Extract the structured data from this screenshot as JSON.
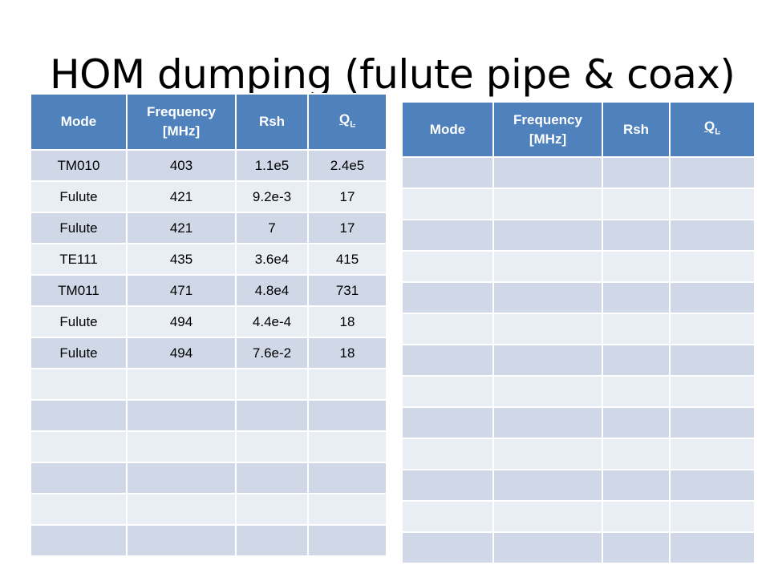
{
  "title": "HOM dumping (fulute pipe & coax)",
  "colors": {
    "header": "#4f81bd",
    "row_odd": "#d0d8e8",
    "row_even": "#e9edf4"
  },
  "table_left": {
    "headers": {
      "mode": "Mode",
      "frequency": "Frequency [MHz]",
      "rsh": "Rsh",
      "ql_main": "Q",
      "ql_sub": "L"
    },
    "rows": [
      [
        "TM010",
        "403",
        "1.1e5",
        "2.4e5"
      ],
      [
        "Fulute",
        "421",
        "9.2e-3",
        "17"
      ],
      [
        "Fulute",
        "421",
        "7",
        "17"
      ],
      [
        "TE111",
        "435",
        "3.6e4",
        "415"
      ],
      [
        "TM011",
        "471",
        "4.8e4",
        "731"
      ],
      [
        "Fulute",
        "494",
        "4.4e-4",
        "18"
      ],
      [
        "Fulute",
        "494",
        "7.6e-2",
        "18"
      ],
      [
        "",
        "",
        "",
        ""
      ],
      [
        "",
        "",
        "",
        ""
      ],
      [
        "",
        "",
        "",
        ""
      ],
      [
        "",
        "",
        "",
        ""
      ],
      [
        "",
        "",
        "",
        ""
      ],
      [
        "",
        "",
        "",
        ""
      ]
    ]
  },
  "table_right": {
    "headers": {
      "mode": "Mode",
      "frequency": "Frequency [MHz]",
      "rsh": "Rsh",
      "ql_main": "Q",
      "ql_sub": "L"
    },
    "rows": [
      [
        "",
        "",
        "",
        ""
      ],
      [
        "",
        "",
        "",
        ""
      ],
      [
        "",
        "",
        "",
        ""
      ],
      [
        "",
        "",
        "",
        ""
      ],
      [
        "",
        "",
        "",
        ""
      ],
      [
        "",
        "",
        "",
        ""
      ],
      [
        "",
        "",
        "",
        ""
      ],
      [
        "",
        "",
        "",
        ""
      ],
      [
        "",
        "",
        "",
        ""
      ],
      [
        "",
        "",
        "",
        ""
      ],
      [
        "",
        "",
        "",
        ""
      ],
      [
        "",
        "",
        "",
        ""
      ],
      [
        "",
        "",
        "",
        ""
      ]
    ]
  }
}
